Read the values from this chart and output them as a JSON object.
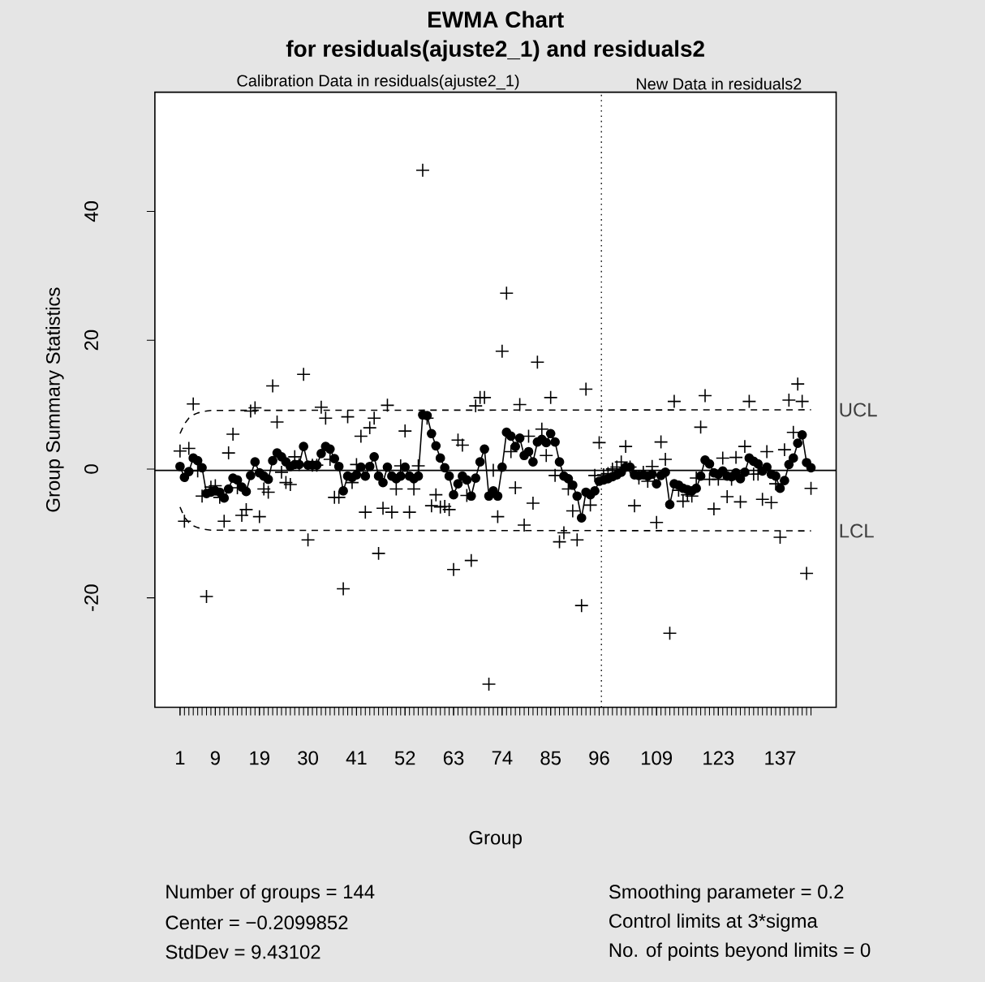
{
  "chart_data": {
    "type": "line",
    "title": "EWMA Chart",
    "subtitle": "for residuals(ajuste2_1) and residuals2",
    "xlabel": "Group",
    "ylabel": "Group Summary Statistics",
    "x": [
      1,
      2,
      3,
      4,
      5,
      6,
      7,
      8,
      9,
      10,
      11,
      12,
      13,
      14,
      15,
      16,
      17,
      18,
      19,
      20,
      21,
      22,
      23,
      24,
      25,
      26,
      27,
      28,
      29,
      30,
      31,
      32,
      33,
      34,
      35,
      36,
      37,
      38,
      39,
      40,
      41,
      42,
      43,
      44,
      45,
      46,
      47,
      48,
      49,
      50,
      51,
      52,
      53,
      54,
      55,
      56,
      57,
      58,
      59,
      60,
      61,
      62,
      63,
      64,
      65,
      66,
      67,
      68,
      69,
      70,
      71,
      72,
      73,
      74,
      75,
      76,
      77,
      78,
      79,
      80,
      81,
      82,
      83,
      84,
      85,
      86,
      87,
      88,
      89,
      90,
      91,
      92,
      93,
      94,
      95,
      96,
      97,
      98,
      99,
      100,
      101,
      102,
      103,
      104,
      105,
      106,
      107,
      108,
      109,
      110,
      111,
      112,
      113,
      114,
      115,
      116,
      117,
      118,
      119,
      120,
      121,
      122,
      123,
      124,
      125,
      126,
      127,
      128,
      129,
      130,
      131,
      132,
      133,
      134,
      135,
      136,
      137,
      138,
      139,
      140,
      141,
      142,
      143,
      144
    ],
    "xlim": [
      -4.7,
      149.7
    ],
    "xticks": [
      1,
      9,
      19,
      30,
      41,
      52,
      63,
      74,
      85,
      96,
      109,
      123,
      137
    ],
    "ylim": [
      -37,
      58.5
    ],
    "yticks": [
      -20,
      0,
      20,
      40
    ],
    "grid": false,
    "legend": false,
    "series": [
      {
        "type": "scatter",
        "marker": "cross",
        "color": "#000000",
        "values": [
          2.8,
          -8.1,
          3.2,
          10.1,
          -0.3,
          -4.2,
          -19.8,
          -2.8,
          -2.6,
          -4.4,
          -8.1,
          2.5,
          5.4,
          -2.9,
          -7.2,
          -6.3,
          9.0,
          9.5,
          -7.4,
          -3.1,
          -3.6,
          12.9,
          7.3,
          -0.5,
          -2.1,
          -2.4,
          1.9,
          0.7,
          14.7,
          -11.0,
          0.6,
          0.6,
          9.6,
          7.9,
          1.5,
          -4.4,
          -4.4,
          -18.6,
          8.1,
          -2.1,
          0.7,
          5.1,
          -6.7,
          6.4,
          7.9,
          -13.1,
          -6.1,
          9.9,
          -6.7,
          -3.1,
          0.5,
          5.9,
          -6.7,
          -3.1,
          0.5,
          46.4,
          7.9,
          -5.7,
          -4.0,
          -5.9,
          -5.8,
          -6.3,
          -15.6,
          4.5,
          3.7,
          -4.1,
          -14.2,
          9.8,
          11.1,
          11.1,
          -33.4,
          -0.2,
          -7.4,
          18.3,
          27.3,
          2.7,
          -2.9,
          10.0,
          -8.7,
          5.1,
          -5.3,
          16.6,
          6.2,
          2.1,
          11.1,
          -1.0,
          -11.3,
          -9.9,
          -3.1,
          -6.5,
          -11.0,
          -21.2,
          12.4,
          -5.6,
          -1.0,
          4.1,
          -0.9,
          -0.7,
          0.0,
          0.3,
          1.1,
          3.5,
          0.3,
          -5.7,
          -1.4,
          -0.5,
          -1.9,
          0.4,
          -8.3,
          4.2,
          1.5,
          -25.5,
          10.5,
          -3.3,
          -5.0,
          -4.0,
          -4.2,
          -1.4,
          6.5,
          11.4,
          -1.6,
          -6.2,
          -1.6,
          1.7,
          -4.3,
          -1.6,
          1.8,
          -5.1,
          3.5,
          10.5,
          -0.8,
          -0.8,
          -4.7,
          2.7,
          -5.2,
          -2.3,
          -10.6,
          3.0,
          10.7,
          5.7,
          13.2,
          10.5,
          -16.2,
          -3.0
        ]
      },
      {
        "type": "line",
        "marker": "circle",
        "color": "#000000",
        "values": [
          0.4,
          -1.3,
          -0.4,
          1.7,
          1.3,
          0.2,
          -3.8,
          -3.6,
          -3.4,
          -3.6,
          -4.5,
          -3.1,
          -1.4,
          -1.7,
          -2.8,
          -3.5,
          -1.0,
          1.1,
          -0.6,
          -1.1,
          -1.6,
          1.3,
          2.5,
          1.9,
          1.1,
          0.4,
          0.7,
          0.7,
          3.5,
          0.6,
          0.6,
          0.6,
          2.4,
          3.5,
          3.1,
          1.6,
          0.4,
          -3.4,
          -1.1,
          -1.3,
          -0.9,
          0.3,
          -1.1,
          0.4,
          1.9,
          -1.1,
          -2.1,
          0.3,
          -1.1,
          -1.5,
          -1.1,
          0.3,
          -1.1,
          -1.5,
          -1.1,
          8.4,
          8.3,
          5.5,
          3.6,
          1.7,
          0.2,
          -1.1,
          -4.0,
          -2.3,
          -1.1,
          -1.7,
          -4.2,
          -1.4,
          1.1,
          3.1,
          -4.2,
          -3.4,
          -4.2,
          0.3,
          5.7,
          5.1,
          3.5,
          4.8,
          2.1,
          2.7,
          1.1,
          4.2,
          4.6,
          4.1,
          5.5,
          4.2,
          1.1,
          -1.1,
          -1.5,
          -2.5,
          -4.2,
          -7.6,
          -3.6,
          -4.0,
          -3.4,
          -1.9,
          -1.7,
          -1.5,
          -1.2,
          -0.9,
          -0.5,
          0.3,
          0.3,
          -0.9,
          -1.0,
          -0.9,
          -1.1,
          -0.8,
          -2.3,
          -1.0,
          -0.5,
          -5.5,
          -2.3,
          -2.5,
          -3.0,
          -3.2,
          -3.4,
          -3.0,
          -1.1,
          1.4,
          0.8,
          -0.6,
          -0.8,
          -0.3,
          -1.1,
          -1.2,
          -0.6,
          -1.5,
          -0.5,
          1.7,
          1.2,
          0.8,
          -0.3,
          0.3,
          -0.8,
          -1.1,
          -3.0,
          -1.8,
          0.7,
          1.7,
          4.0,
          5.3,
          1.0,
          0.2
        ]
      },
      {
        "name": "UCL",
        "type": "line",
        "marker": "none",
        "line_style": "dashed",
        "color": "#000000",
        "x": [
          1,
          2,
          3,
          4,
          5,
          6,
          7,
          8,
          144
        ],
        "values": [
          5.5,
          7.0,
          7.9,
          8.4,
          8.7,
          8.9,
          9.0,
          9.1,
          9.2
        ]
      },
      {
        "name": "LCL",
        "type": "line",
        "marker": "none",
        "line_style": "dashed",
        "color": "#000000",
        "x": [
          1,
          2,
          3,
          4,
          5,
          6,
          7,
          8,
          144
        ],
        "values": [
          -5.9,
          -7.5,
          -8.3,
          -8.8,
          -9.1,
          -9.3,
          -9.4,
          -9.5,
          -9.6
        ]
      }
    ],
    "ref_lines": [
      {
        "axis": "y",
        "value": -0.21,
        "line_style": "solid",
        "color": "#000000"
      },
      {
        "axis": "x",
        "value": 96.5,
        "line_style": "dotted",
        "color": "#000000"
      }
    ],
    "annotations": [
      "Calibration Data in residuals(ajuste2_1)",
      "New Data in residuals2",
      "Number of groups = 144",
      "Center = −0.2099852",
      "StdDev = 9.43102",
      "Smoothing parameter = 0.2",
      "Control limits at 3*sigma",
      "No. of points beyond limits = 0"
    ]
  }
}
